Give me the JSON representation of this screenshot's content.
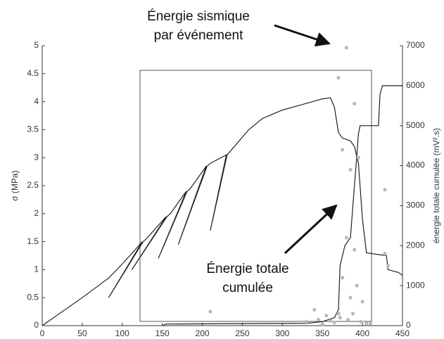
{
  "chart_data": {
    "type": "line",
    "xlim": [
      0,
      450
    ],
    "xticks": [
      0,
      50,
      100,
      150,
      200,
      250,
      300,
      350,
      400,
      450
    ],
    "ylim": [
      0,
      5
    ],
    "yticks": [
      0,
      0.5,
      1,
      1.5,
      2,
      2.5,
      3,
      3.5,
      4,
      4.5,
      5
    ],
    "y2lim": [
      0,
      7000
    ],
    "y2ticks": [
      0,
      1000,
      2000,
      3000,
      4000,
      5000,
      6000,
      7000
    ],
    "ylabel": "σ (MPa)",
    "y2label": "énergie totale cumulée (mV².s)",
    "series": [
      {
        "type": "line",
        "color": "#222222",
        "x": [
          0,
          50,
          83,
          100,
          125,
          83,
          126,
          130,
          155,
          112,
          156,
          160,
          180,
          145,
          181,
          185,
          205,
          170,
          206,
          210,
          230,
          210,
          231,
          240,
          258,
          275,
          300,
          325,
          350,
          360,
          365,
          370,
          375,
          385,
          390,
          395,
          400,
          405,
          430,
          432,
          445,
          450
        ],
        "values": [
          0,
          0.5,
          0.85,
          1.1,
          1.5,
          0.5,
          1.5,
          1.55,
          1.95,
          1.0,
          1.95,
          2.0,
          2.4,
          1.2,
          2.4,
          2.45,
          2.85,
          1.45,
          2.85,
          2.9,
          3.05,
          1.7,
          3.05,
          3.2,
          3.5,
          3.7,
          3.85,
          3.95,
          4.05,
          4.07,
          3.9,
          3.45,
          3.35,
          3.3,
          3.2,
          2.9,
          1.9,
          1.3,
          1.25,
          1.0,
          0.95,
          0.9
        ]
      },
      {
        "type": "line",
        "axis": "y2",
        "color": "#222222",
        "x": [
          150,
          155,
          330,
          350,
          365,
          370,
          372,
          378,
          385,
          388,
          392,
          395,
          397,
          420,
          422,
          425,
          450
        ],
        "values": [
          0,
          40,
          60,
          100,
          200,
          400,
          1500,
          2000,
          2200,
          3000,
          4000,
          4800,
          5000,
          5000,
          5800,
          6000,
          6000
        ]
      },
      {
        "type": "scatter",
        "axis": "y2",
        "color": "#b8b8b8",
        "x": [
          380,
          370,
          390,
          375,
          395,
          385,
          428,
          380,
          390,
          428,
          432,
          375,
          393,
          210,
          340,
          385,
          400,
          370,
          330,
          345,
          355,
          360,
          365,
          372,
          382,
          398,
          405,
          410,
          350,
          388
        ],
        "values": [
          6950,
          6200,
          5550,
          4400,
          4200,
          3900,
          3400,
          2200,
          1900,
          1800,
          1500,
          1200,
          1000,
          350,
          400,
          700,
          600,
          300,
          100,
          150,
          250,
          120,
          80,
          200,
          150,
          100,
          60,
          50,
          40,
          300
        ]
      }
    ],
    "annotations": [
      {
        "lines": [
          "Énergie sismique",
          "par événement"
        ]
      },
      {
        "lines": [
          "Énergie totale",
          "cumulée"
        ]
      }
    ]
  }
}
